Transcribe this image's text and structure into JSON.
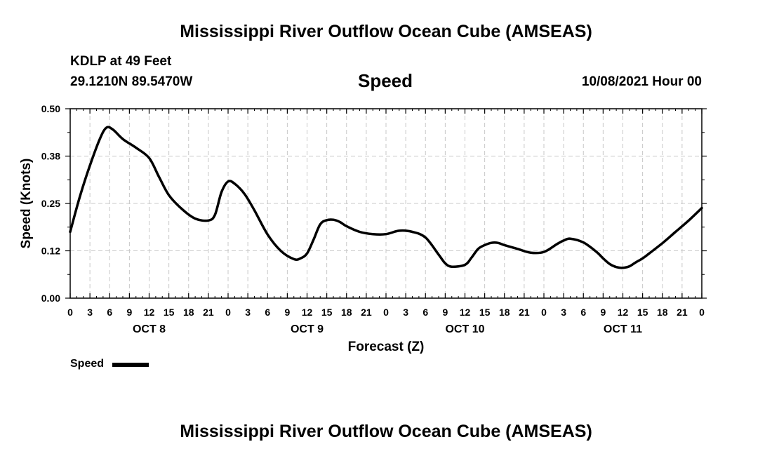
{
  "header": {
    "title": "Mississippi River Outflow Ocean Cube (AMSEAS)",
    "station": "KDLP at 49 Feet",
    "position": "29.1210N  89.5470W",
    "variable": "Speed",
    "init_time": "10/08/2021 Hour 00"
  },
  "footer": {
    "title": "Mississippi River Outflow Ocean Cube (AMSEAS)"
  },
  "legend": {
    "label": "Speed",
    "color": "#000000"
  },
  "chart_data": {
    "type": "line",
    "title": "Speed",
    "xlabel": "Forecast (Z)",
    "ylabel": "Speed (Knots)",
    "ylim": [
      0,
      0.5
    ],
    "xlim": [
      0,
      96
    ],
    "grid": true,
    "yticks": [
      0.0,
      0.125,
      0.25,
      0.375,
      0.5
    ],
    "ytick_labels": [
      "0.00",
      "0.12",
      "0.25",
      "0.38",
      "0.50"
    ],
    "xtick_hours": [
      0,
      3,
      6,
      9,
      12,
      15,
      18,
      21,
      24,
      27,
      30,
      33,
      36,
      39,
      42,
      45,
      48,
      51,
      54,
      57,
      60,
      63,
      66,
      69,
      72,
      75,
      78,
      81,
      84,
      87,
      90,
      93,
      96
    ],
    "xtick_labels": [
      "0",
      "3",
      "6",
      "9",
      "12",
      "15",
      "18",
      "21",
      "0",
      "3",
      "6",
      "9",
      "12",
      "15",
      "18",
      "21",
      "0",
      "3",
      "6",
      "9",
      "12",
      "15",
      "18",
      "21",
      "0",
      "3",
      "6",
      "9",
      "12",
      "15",
      "18",
      "21",
      "0"
    ],
    "day_labels": [
      {
        "hour": 12,
        "label": "OCT 8"
      },
      {
        "hour": 36,
        "label": "OCT 9"
      },
      {
        "hour": 60,
        "label": "OCT 10"
      },
      {
        "hour": 84,
        "label": "OCT 11"
      }
    ],
    "series": [
      {
        "name": "Speed",
        "color": "#000000",
        "x": [
          0,
          1.5,
          3,
          4.5,
          5.5,
          6.5,
          8,
          10,
          12,
          13.5,
          15,
          17,
          19,
          21,
          22,
          23,
          24,
          25,
          26.5,
          28,
          30,
          32,
          34,
          35,
          36,
          37,
          38,
          39,
          40,
          41,
          42,
          44,
          46,
          48,
          50,
          52,
          54,
          56,
          57,
          58,
          60,
          61,
          62,
          63,
          64,
          65,
          66,
          68,
          70,
          72,
          74,
          75,
          76,
          78,
          80,
          81,
          82,
          83,
          84,
          85,
          86,
          87,
          88,
          90,
          92,
          94,
          96
        ],
        "y": [
          0.175,
          0.27,
          0.35,
          0.42,
          0.45,
          0.445,
          0.42,
          0.397,
          0.37,
          0.32,
          0.272,
          0.235,
          0.21,
          0.205,
          0.22,
          0.28,
          0.308,
          0.302,
          0.275,
          0.232,
          0.168,
          0.125,
          0.103,
          0.105,
          0.118,
          0.155,
          0.195,
          0.206,
          0.207,
          0.201,
          0.19,
          0.175,
          0.169,
          0.169,
          0.178,
          0.175,
          0.16,
          0.115,
          0.092,
          0.083,
          0.088,
          0.107,
          0.13,
          0.14,
          0.146,
          0.146,
          0.14,
          0.13,
          0.12,
          0.122,
          0.143,
          0.152,
          0.157,
          0.147,
          0.122,
          0.105,
          0.09,
          0.082,
          0.08,
          0.084,
          0.095,
          0.105,
          0.118,
          0.145,
          0.175,
          0.205,
          0.238
        ]
      }
    ]
  }
}
